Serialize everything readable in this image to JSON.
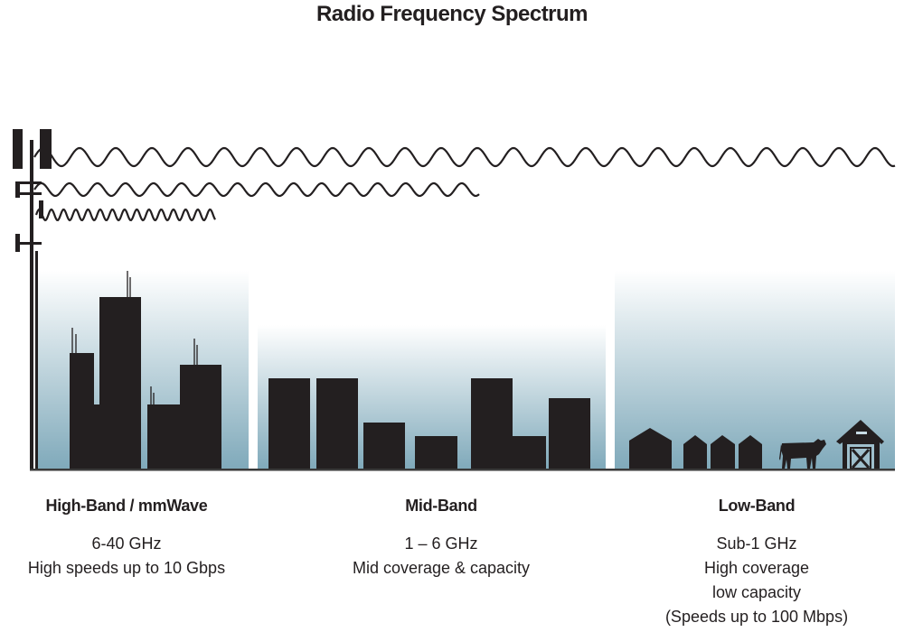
{
  "title": "Radio Frequency Spectrum",
  "colors": {
    "silhouette": "#231f20",
    "sky_bottom": "#7fa9ba",
    "sky_top": "#ffffff"
  },
  "bands": [
    {
      "name": "High-Band / mmWave",
      "lines": [
        "6-40 GHz",
        "High speeds up to 10 Gbps"
      ]
    },
    {
      "name": "Mid-Band",
      "lines": [
        "1 – 6 GHz",
        "Mid coverage & capacity"
      ]
    },
    {
      "name": "Low-Band",
      "lines": [
        "Sub-1 GHz",
        "High coverage",
        "low capacity",
        "(Speeds up to 100 Mbps)"
      ]
    }
  ]
}
